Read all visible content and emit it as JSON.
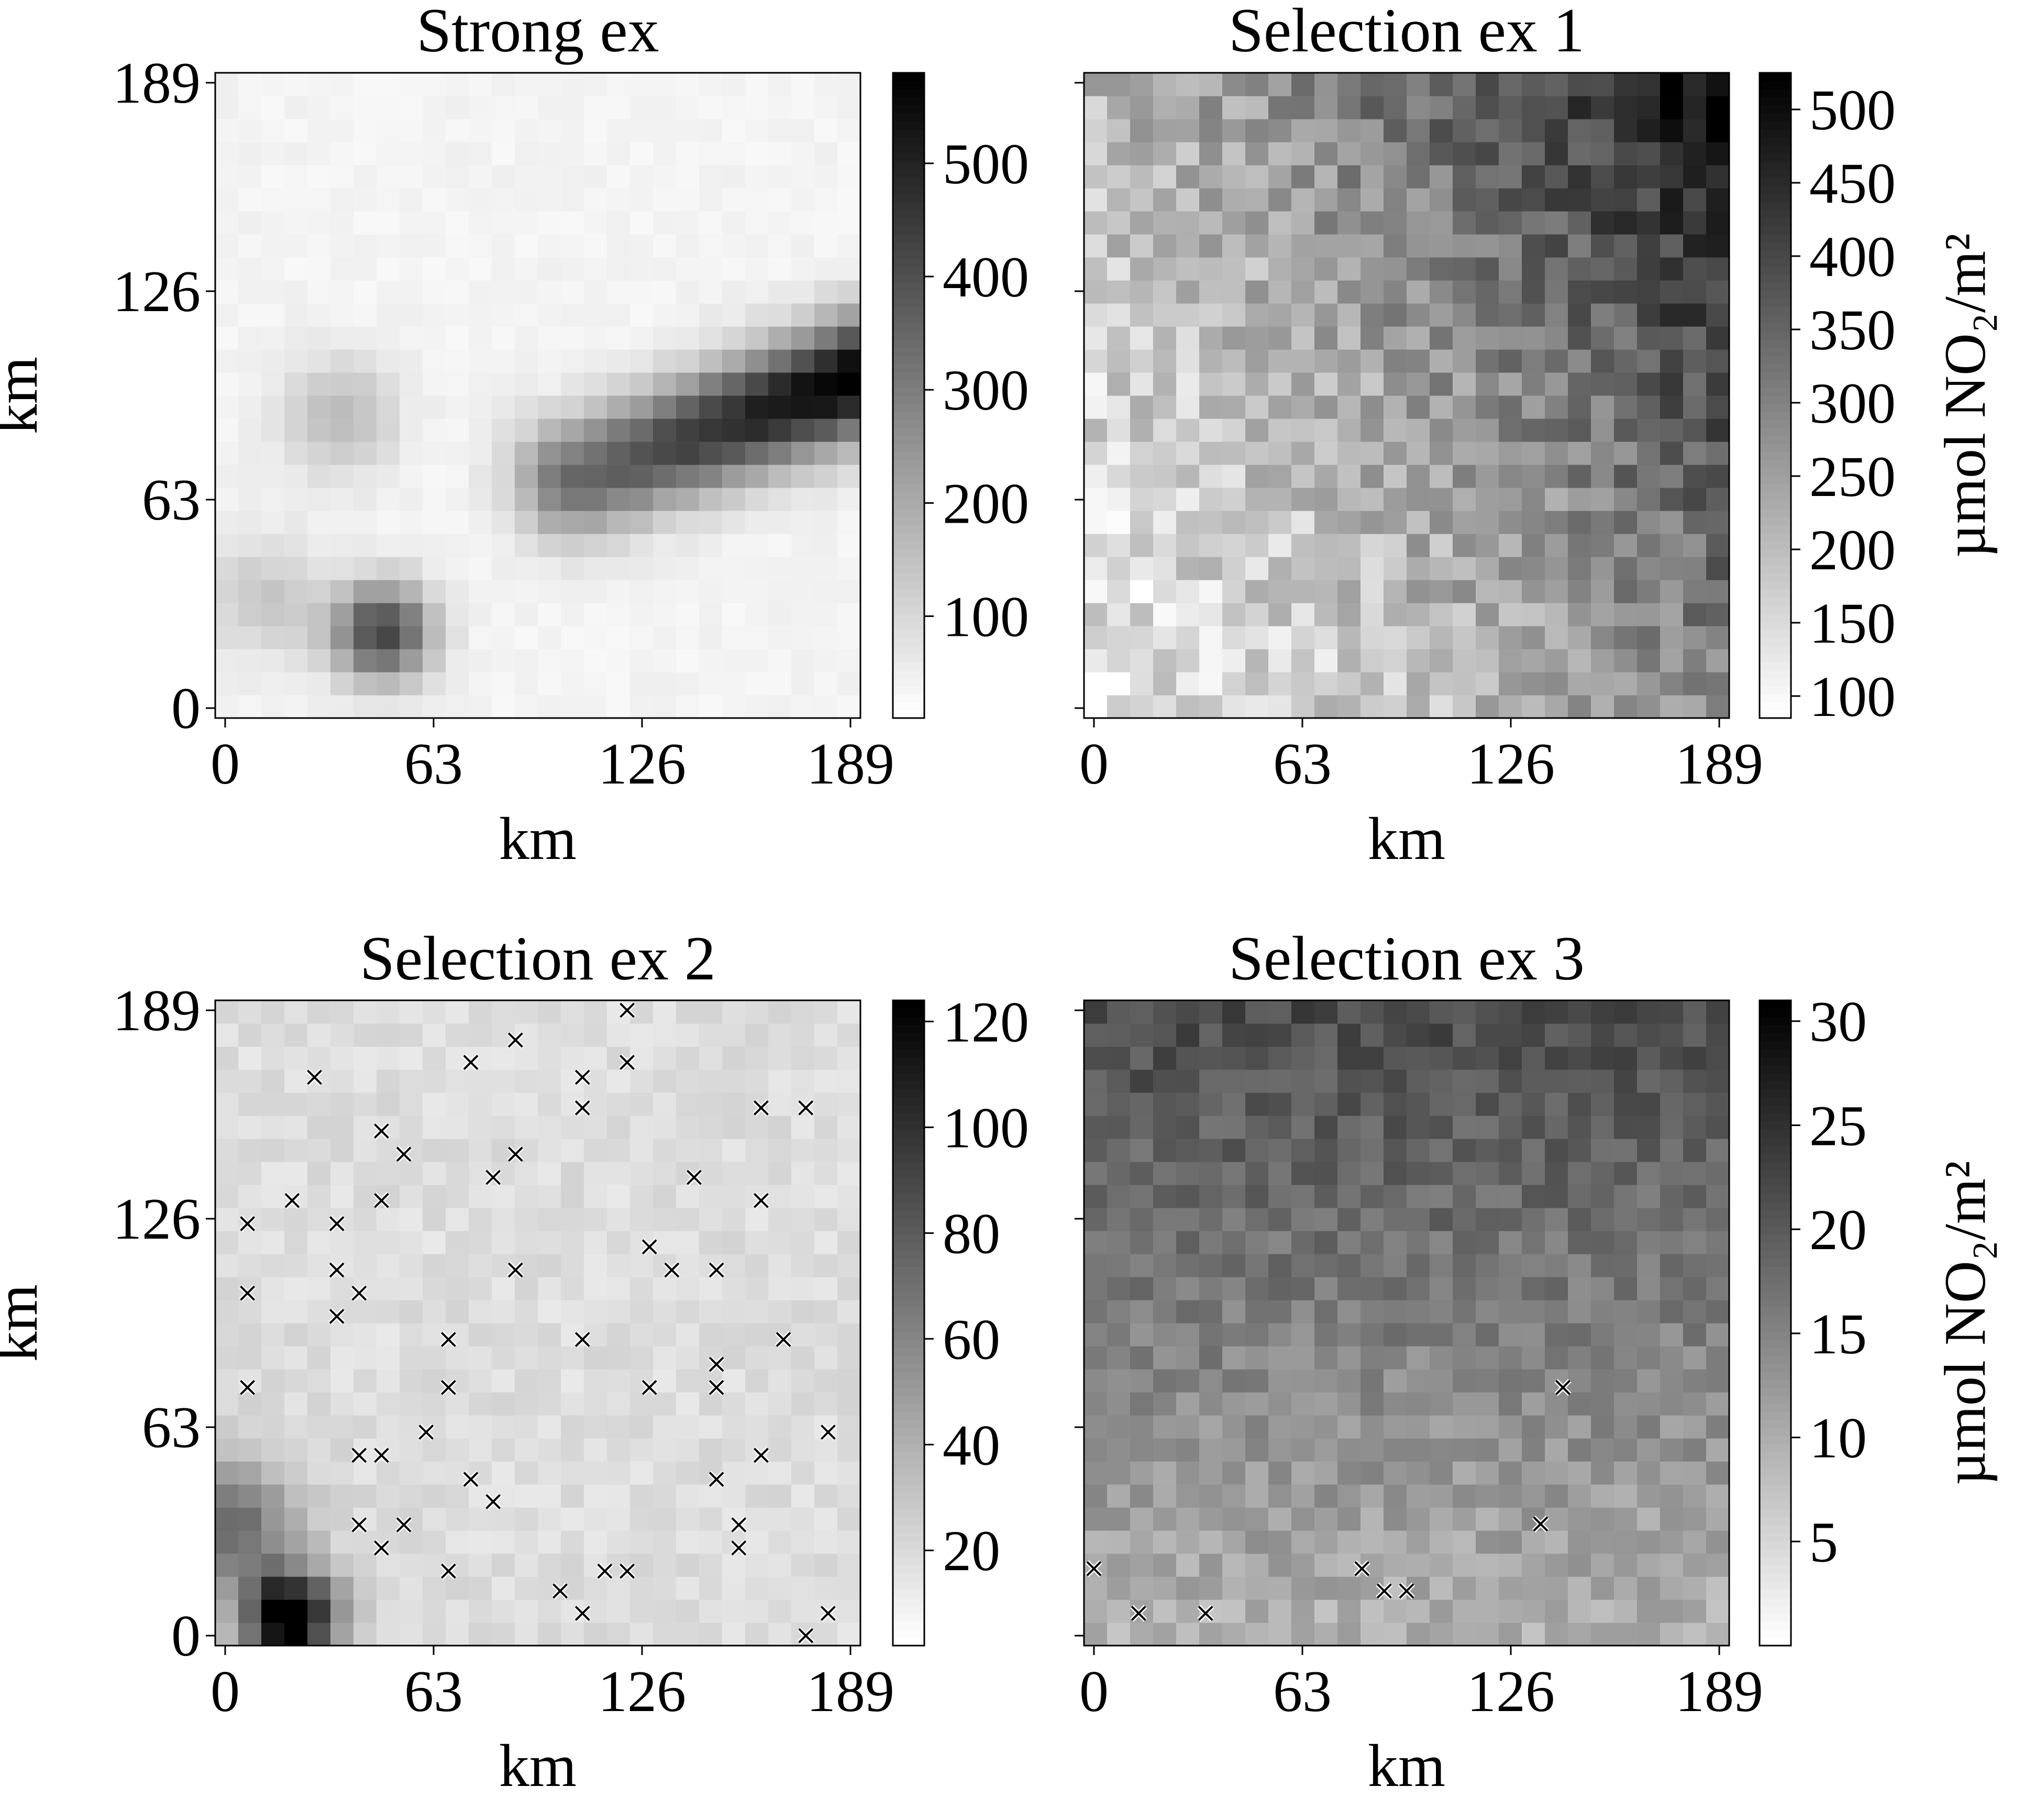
{
  "chart_data": [
    {
      "type": "heatmap",
      "title": "Strong ex",
      "xlabel": "km",
      "ylabel": "km",
      "x_ticks": [
        "0",
        "63",
        "126",
        "189"
      ],
      "y_ticks": [
        "0",
        "63",
        "126",
        "189"
      ],
      "xlim": [
        -3,
        192
      ],
      "ylim": [
        -3,
        192
      ],
      "grid_size": 28,
      "colorbar": {
        "ticks": [
          100,
          200,
          300,
          400,
          500
        ],
        "range": [
          10,
          580
        ],
        "label": "",
        "colormap": "Greys"
      },
      "background_level": 35,
      "features": [
        {
          "kind": "plume",
          "x": [
            105,
            188
          ],
          "y": [
            70,
            100
          ],
          "width": 12,
          "peak": 560
        },
        {
          "kind": "blob",
          "x": 49,
          "y": 25,
          "radius": 15,
          "peak": 400
        },
        {
          "kind": "blob",
          "x": 36,
          "y": 88,
          "radius": 18,
          "peak": 130
        },
        {
          "kind": "blob",
          "x": 15,
          "y": 35,
          "radius": 18,
          "peak": 100
        }
      ],
      "markers": []
    },
    {
      "type": "heatmap",
      "title": "Selection ex 1",
      "xlabel": "km",
      "ylabel": "",
      "x_ticks": [
        "0",
        "63",
        "126",
        "189"
      ],
      "y_ticks": [],
      "xlim": [
        -3,
        192
      ],
      "ylim": [
        -3,
        192
      ],
      "grid_size": 28,
      "colorbar": {
        "ticks": [
          100,
          150,
          200,
          250,
          300,
          350,
          400,
          450,
          500
        ],
        "range": [
          85,
          525
        ],
        "label": "µmol NO₂/m²",
        "colormap": "Greys"
      },
      "gradient": {
        "low": 120,
        "high": 480,
        "direction": "upper-right"
      },
      "markers": []
    },
    {
      "type": "heatmap",
      "title": "Selection ex 2",
      "xlabel": "km",
      "ylabel": "km",
      "x_ticks": [
        "0",
        "63",
        "126",
        "189"
      ],
      "y_ticks": [
        "0",
        "63",
        "126",
        "189"
      ],
      "xlim": [
        -3,
        192
      ],
      "ylim": [
        -3,
        192
      ],
      "grid_size": 28,
      "colorbar": {
        "ticks": [
          20,
          40,
          60,
          80,
          100,
          120
        ],
        "range": [
          2,
          124
        ],
        "label": "",
        "colormap": "Greys"
      },
      "background_level": 18,
      "features": [
        {
          "kind": "blob",
          "x": 22,
          "y": 8,
          "radius": 14,
          "peak": 120
        },
        {
          "kind": "blob",
          "x": 5,
          "y": 35,
          "radius": 20,
          "peak": 55
        }
      ],
      "markers": [
        [
          6.75,
          124.5
        ],
        [
          6.75,
          103.5
        ],
        [
          6.75,
          75
        ],
        [
          20.25,
          131.5
        ],
        [
          27,
          168.75
        ],
        [
          33.75,
          124.5
        ],
        [
          33.75,
          110.5
        ],
        [
          33.75,
          96.5
        ],
        [
          40.5,
          103.5
        ],
        [
          40.5,
          54.5
        ],
        [
          40.5,
          33.5
        ],
        [
          47.25,
          152.5
        ],
        [
          47.25,
          131.5
        ],
        [
          47.25,
          54.5
        ],
        [
          47.25,
          26.5
        ],
        [
          54,
          145.5
        ],
        [
          54,
          33.5
        ],
        [
          60.75,
          61.5
        ],
        [
          67.5,
          89.5
        ],
        [
          67.5,
          75
        ],
        [
          67.5,
          19.5
        ],
        [
          74.25,
          173.25
        ],
        [
          74.25,
          47.25
        ],
        [
          81,
          138.5
        ],
        [
          81,
          40.5
        ],
        [
          87.75,
          180
        ],
        [
          87.75,
          145.5
        ],
        [
          87.75,
          110.5
        ],
        [
          101.25,
          13.5
        ],
        [
          108,
          168.75
        ],
        [
          108,
          159.5
        ],
        [
          108,
          89.5
        ],
        [
          108,
          6.75
        ],
        [
          114.75,
          19.5
        ],
        [
          121.5,
          189
        ],
        [
          121.5,
          173.25
        ],
        [
          121.5,
          19.5
        ],
        [
          128.25,
          117.5
        ],
        [
          128.25,
          75
        ],
        [
          135,
          110.5
        ],
        [
          141.75,
          138.5
        ],
        [
          148.5,
          110.5
        ],
        [
          148.5,
          82
        ],
        [
          148.5,
          75
        ],
        [
          148.5,
          47.25
        ],
        [
          155.25,
          33.5
        ],
        [
          155.25,
          26.5
        ],
        [
          162,
          159.5
        ],
        [
          162,
          131.5
        ],
        [
          162,
          54.5
        ],
        [
          168.75,
          89.5
        ],
        [
          175.5,
          159.5
        ],
        [
          175.5,
          0
        ],
        [
          182.25,
          61.5
        ],
        [
          182.25,
          6.75
        ]
      ]
    },
    {
      "type": "heatmap",
      "title": "Selection ex 3",
      "xlabel": "km",
      "ylabel": "",
      "x_ticks": [
        "0",
        "63",
        "126",
        "189"
      ],
      "y_ticks": [],
      "xlim": [
        -3,
        192
      ],
      "ylim": [
        -3,
        192
      ],
      "grid_size": 28,
      "colorbar": {
        "ticks": [
          5,
          10,
          15,
          20,
          25,
          30
        ],
        "range": [
          0,
          31
        ],
        "label": "µmol NO₂/m²",
        "colormap": "Greys"
      },
      "gradient": {
        "low": 6,
        "high": 22,
        "direction": "top"
      },
      "markers": [
        [
          0,
          20.25
        ],
        [
          13.5,
          6.75
        ],
        [
          33.75,
          6.75
        ],
        [
          81,
          20.25
        ],
        [
          87.75,
          13.5
        ],
        [
          94.5,
          13.5
        ],
        [
          135,
          33.75
        ],
        [
          141.75,
          75
        ]
      ]
    }
  ]
}
